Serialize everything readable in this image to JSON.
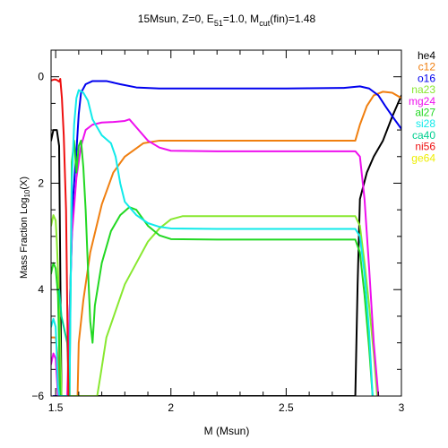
{
  "chart_data": {
    "type": "line",
    "title": {
      "prefix": "15Msun, Z=0, E",
      "e_sub": "51",
      "middle": "=1.0, M",
      "m_sub": "cut",
      "suffix": "(fin)=1.48"
    },
    "xlabel": "M (Msun)",
    "ylabel": {
      "prefix": "Mass Fraction Log",
      "sub": "10",
      "suffix": "(X)"
    },
    "xlim": [
      1.48,
      3.0
    ],
    "ylim": [
      -6.0,
      0.5
    ],
    "y_inverted_note": "",
    "x_ticks": [
      {
        "v": 1.5,
        "label": "1.5"
      },
      {
        "v": 2.0,
        "label": "2"
      },
      {
        "v": 2.5,
        "label": "2.5"
      },
      {
        "v": 3.0,
        "label": "3"
      }
    ],
    "y_ticks": [
      {
        "v": 0,
        "label": "0"
      },
      {
        "v": -2,
        "label": "2"
      },
      {
        "v": -4,
        "label": "4"
      },
      {
        "v": -6,
        "label": "−6"
      }
    ],
    "grid": false,
    "legend_position": "right",
    "series": [
      {
        "name": "he4",
        "color": "#000000",
        "points": [
          [
            1.48,
            -1.2
          ],
          [
            1.49,
            -1.0
          ],
          [
            1.505,
            -1.0
          ],
          [
            1.515,
            -1.3
          ],
          [
            1.525,
            -6.0
          ],
          [
            2.8,
            -6.0
          ],
          [
            2.81,
            -3.9
          ],
          [
            2.82,
            -2.3
          ],
          [
            2.85,
            -1.8
          ],
          [
            2.88,
            -1.5
          ],
          [
            2.92,
            -1.2
          ],
          [
            2.96,
            -0.75
          ],
          [
            2.98,
            -0.55
          ],
          [
            3.0,
            -0.35
          ]
        ]
      },
      {
        "name": "c12",
        "color": "#f07f10",
        "points": [
          [
            1.48,
            -4.9
          ],
          [
            1.5,
            -4.9
          ],
          [
            1.51,
            -5.3
          ],
          [
            1.52,
            -6.0
          ],
          [
            1.595,
            -6.0
          ],
          [
            1.6,
            -5.0
          ],
          [
            1.62,
            -4.2
          ],
          [
            1.65,
            -3.3
          ],
          [
            1.7,
            -2.4
          ],
          [
            1.75,
            -1.8
          ],
          [
            1.8,
            -1.5
          ],
          [
            1.88,
            -1.25
          ],
          [
            1.95,
            -1.2
          ],
          [
            2.2,
            -1.2
          ],
          [
            2.5,
            -1.2
          ],
          [
            2.8,
            -1.2
          ],
          [
            2.82,
            -0.9
          ],
          [
            2.85,
            -0.55
          ],
          [
            2.88,
            -0.35
          ],
          [
            2.92,
            -0.28
          ],
          [
            2.96,
            -0.3
          ],
          [
            3.0,
            -0.4
          ]
        ]
      },
      {
        "name": "o16",
        "color": "#0000ee",
        "points": [
          [
            1.49,
            -6.0
          ],
          [
            1.555,
            -6.0
          ],
          [
            1.56,
            -4.5
          ],
          [
            1.575,
            -2.3
          ],
          [
            1.59,
            -1.4
          ],
          [
            1.6,
            -0.7
          ],
          [
            1.61,
            -0.3
          ],
          [
            1.63,
            -0.14
          ],
          [
            1.66,
            -0.08
          ],
          [
            1.72,
            -0.08
          ],
          [
            1.78,
            -0.14
          ],
          [
            1.85,
            -0.2
          ],
          [
            1.95,
            -0.22
          ],
          [
            2.2,
            -0.22
          ],
          [
            2.5,
            -0.22
          ],
          [
            2.75,
            -0.21
          ],
          [
            2.82,
            -0.18
          ],
          [
            2.86,
            -0.22
          ],
          [
            2.9,
            -0.35
          ],
          [
            2.93,
            -0.55
          ],
          [
            2.97,
            -0.8
          ],
          [
            3.0,
            -0.98
          ]
        ]
      },
      {
        "name": "na23",
        "color": "#88e830",
        "points": [
          [
            1.48,
            -2.8
          ],
          [
            1.49,
            -2.6
          ],
          [
            1.5,
            -2.7
          ],
          [
            1.505,
            -3.1
          ],
          [
            1.515,
            -4.2
          ],
          [
            1.525,
            -6.0
          ],
          [
            1.68,
            -6.0
          ],
          [
            1.695,
            -5.6
          ],
          [
            1.72,
            -4.9
          ],
          [
            1.76,
            -4.4
          ],
          [
            1.8,
            -3.9
          ],
          [
            1.85,
            -3.5
          ],
          [
            1.9,
            -3.1
          ],
          [
            1.95,
            -2.85
          ],
          [
            2.0,
            -2.68
          ],
          [
            2.05,
            -2.62
          ],
          [
            2.2,
            -2.62
          ],
          [
            2.5,
            -2.62
          ],
          [
            2.8,
            -2.62
          ],
          [
            2.82,
            -2.8
          ],
          [
            2.84,
            -3.5
          ],
          [
            2.86,
            -4.3
          ],
          [
            2.88,
            -5.2
          ],
          [
            2.895,
            -6.0
          ]
        ]
      },
      {
        "name": "mg24",
        "color": "#ee10ee",
        "points": [
          [
            1.48,
            -5.4
          ],
          [
            1.49,
            -5.2
          ],
          [
            1.5,
            -5.3
          ],
          [
            1.51,
            -6.0
          ],
          [
            1.55,
            -6.0
          ],
          [
            1.56,
            -4.5
          ],
          [
            1.57,
            -3.0
          ],
          [
            1.59,
            -1.9
          ],
          [
            1.61,
            -1.3
          ],
          [
            1.63,
            -1.0
          ],
          [
            1.66,
            -0.9
          ],
          [
            1.7,
            -0.86
          ],
          [
            1.75,
            -0.85
          ],
          [
            1.8,
            -0.83
          ],
          [
            1.82,
            -0.8
          ],
          [
            1.85,
            -0.95
          ],
          [
            1.9,
            -1.2
          ],
          [
            1.95,
            -1.33
          ],
          [
            2.0,
            -1.39
          ],
          [
            2.2,
            -1.4
          ],
          [
            2.5,
            -1.4
          ],
          [
            2.8,
            -1.4
          ],
          [
            2.82,
            -1.5
          ],
          [
            2.84,
            -2.3
          ],
          [
            2.86,
            -3.6
          ],
          [
            2.88,
            -5.0
          ],
          [
            2.9,
            -6.0
          ]
        ]
      },
      {
        "name": "al27",
        "color": "#22d822",
        "points": [
          [
            1.48,
            -3.7
          ],
          [
            1.49,
            -3.5
          ],
          [
            1.5,
            -3.6
          ],
          [
            1.51,
            -4.1
          ],
          [
            1.52,
            -6.0
          ],
          [
            1.56,
            -6.0
          ],
          [
            1.57,
            -1.6
          ],
          [
            1.58,
            -1.2
          ],
          [
            1.59,
            -1.8
          ],
          [
            1.6,
            -1.3
          ],
          [
            1.61,
            -1.2
          ],
          [
            1.62,
            -1.7
          ],
          [
            1.63,
            -2.5
          ],
          [
            1.64,
            -3.6
          ],
          [
            1.65,
            -4.6
          ],
          [
            1.66,
            -5.0
          ],
          [
            1.67,
            -4.3
          ],
          [
            1.7,
            -3.5
          ],
          [
            1.74,
            -2.9
          ],
          [
            1.78,
            -2.6
          ],
          [
            1.82,
            -2.45
          ],
          [
            1.85,
            -2.5
          ],
          [
            1.9,
            -2.8
          ],
          [
            1.95,
            -2.98
          ],
          [
            2.0,
            -3.05
          ],
          [
            2.2,
            -3.06
          ],
          [
            2.5,
            -3.06
          ],
          [
            2.8,
            -3.06
          ],
          [
            2.82,
            -3.3
          ],
          [
            2.84,
            -4.1
          ],
          [
            2.86,
            -5.1
          ],
          [
            2.875,
            -6.0
          ]
        ]
      },
      {
        "name": "si28",
        "color": "#10eaea",
        "points": [
          [
            1.48,
            -4.7
          ],
          [
            1.49,
            -4.55
          ],
          [
            1.5,
            -4.7
          ],
          [
            1.51,
            -5.8
          ],
          [
            1.515,
            -6.0
          ],
          [
            1.56,
            -6.0
          ],
          [
            1.57,
            -2.0
          ],
          [
            1.58,
            -0.9
          ],
          [
            1.59,
            -0.4
          ],
          [
            1.6,
            -0.25
          ],
          [
            1.62,
            -0.3
          ],
          [
            1.64,
            -0.45
          ],
          [
            1.66,
            -0.8
          ],
          [
            1.7,
            -1.1
          ],
          [
            1.74,
            -1.25
          ],
          [
            1.76,
            -1.5
          ],
          [
            1.78,
            -2.0
          ],
          [
            1.8,
            -2.35
          ],
          [
            1.85,
            -2.6
          ],
          [
            1.9,
            -2.75
          ],
          [
            1.95,
            -2.82
          ],
          [
            2.0,
            -2.85
          ],
          [
            2.2,
            -2.86
          ],
          [
            2.5,
            -2.86
          ],
          [
            2.8,
            -2.86
          ],
          [
            2.82,
            -3.0
          ],
          [
            2.84,
            -3.7
          ],
          [
            2.86,
            -4.8
          ],
          [
            2.875,
            -6.0
          ]
        ]
      },
      {
        "name": "ca40",
        "color": "#00d090",
        "points": [
          [
            1.515,
            -4.0
          ],
          [
            1.525,
            -4.5
          ],
          [
            1.54,
            -4.8
          ],
          [
            1.55,
            -5.0
          ],
          [
            1.56,
            -6.0
          ]
        ]
      },
      {
        "name": "ni56",
        "color": "#ee1010",
        "points": [
          [
            1.48,
            -0.07
          ],
          [
            1.495,
            -0.05
          ],
          [
            1.505,
            -0.06
          ],
          [
            1.515,
            -0.09
          ],
          [
            1.52,
            -0.04
          ],
          [
            1.527,
            -0.4
          ],
          [
            1.535,
            -1.1
          ],
          [
            1.545,
            -2.5
          ],
          [
            1.555,
            -6.0
          ]
        ]
      },
      {
        "name": "ge64",
        "color": "#eeee00",
        "points": []
      }
    ]
  }
}
